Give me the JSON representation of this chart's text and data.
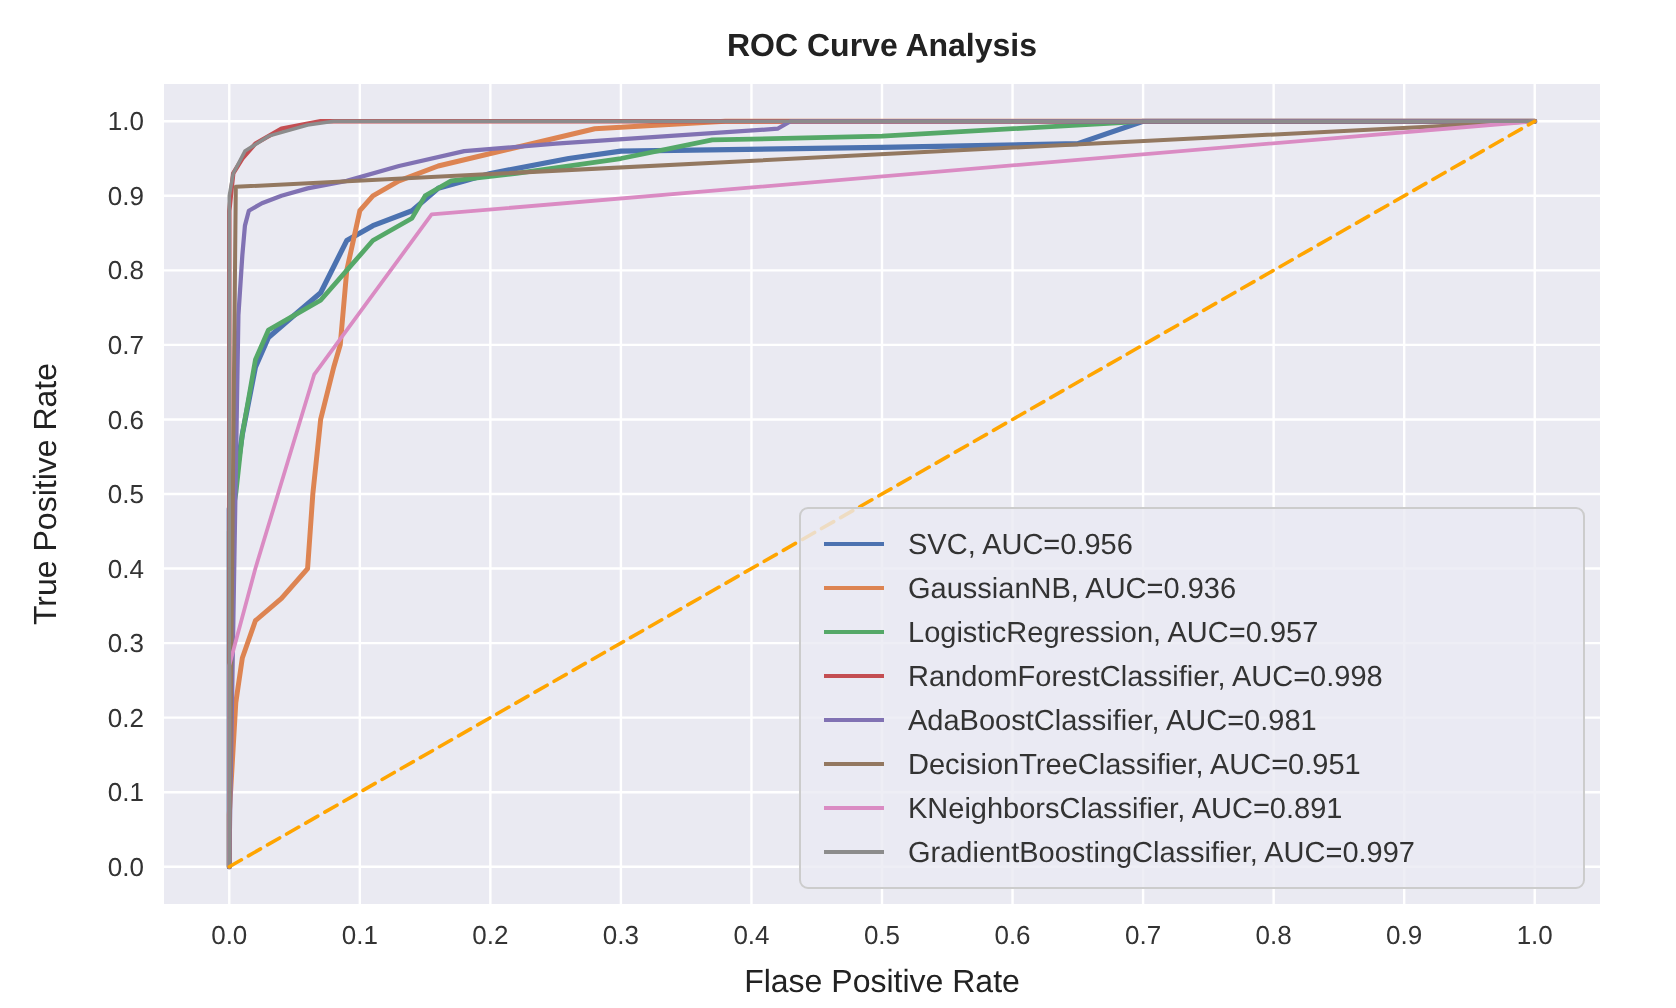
{
  "chart_data": {
    "type": "line",
    "title": "ROC Curve Analysis",
    "xlabel": "Flase Positive Rate",
    "ylabel": "True Positive Rate",
    "xlim": [
      -0.05,
      1.05
    ],
    "ylim": [
      -0.05,
      1.05
    ],
    "xticks": [
      {
        "value": 0,
        "label": "0.0"
      },
      0.1,
      0.2,
      0.3,
      0.4,
      0.5,
      0.6,
      0.7,
      0.8,
      0.9,
      {
        "value": 1,
        "label": "1.0"
      }
    ],
    "yticks": [
      {
        "value": 0,
        "label": "0.0"
      },
      0.1,
      0.2,
      0.3,
      0.4,
      0.5,
      0.6,
      0.7,
      0.8,
      0.9,
      {
        "value": 1,
        "label": "1.0"
      }
    ],
    "grid": true,
    "legend": "bottom right",
    "series": [
      {
        "name": "SVC, AUC=0.956",
        "color": "#4c72b0",
        "x": [
          0,
          0,
          0.005,
          0.01,
          0.02,
          0.03,
          0.05,
          0.07,
          0.09,
          0.11,
          0.14,
          0.16,
          0.18,
          0.2,
          0.26,
          0.3,
          0.5,
          0.65,
          0.7,
          1
        ],
        "values": [
          0,
          0.48,
          0.52,
          0.58,
          0.67,
          0.71,
          0.74,
          0.77,
          0.84,
          0.86,
          0.88,
          0.91,
          0.92,
          0.93,
          0.95,
          0.96,
          0.965,
          0.97,
          1,
          1
        ]
      },
      {
        "name": "GaussianNB, AUC=0.936",
        "color": "#dd8452",
        "x": [
          0,
          0,
          0.005,
          0.01,
          0.02,
          0.04,
          0.06,
          0.064,
          0.07,
          0.08,
          0.085,
          0.09,
          0.1,
          0.11,
          0.13,
          0.16,
          0.28,
          0.38,
          1
        ],
        "values": [
          0,
          0.07,
          0.22,
          0.28,
          0.33,
          0.36,
          0.4,
          0.5,
          0.6,
          0.67,
          0.7,
          0.8,
          0.88,
          0.9,
          0.92,
          0.94,
          0.99,
          1,
          1
        ]
      },
      {
        "name": "LogisticRegression, AUC=0.957",
        "color": "#55a868",
        "x": [
          0,
          0,
          0.005,
          0.01,
          0.02,
          0.03,
          0.05,
          0.07,
          0.09,
          0.11,
          0.14,
          0.15,
          0.17,
          0.22,
          0.3,
          0.37,
          0.5,
          0.7,
          1
        ],
        "values": [
          0,
          0.45,
          0.5,
          0.58,
          0.68,
          0.72,
          0.74,
          0.76,
          0.8,
          0.84,
          0.87,
          0.9,
          0.92,
          0.93,
          0.95,
          0.975,
          0.98,
          1,
          1
        ]
      },
      {
        "name": "RandomForestClassifier, AUC=0.998",
        "color": "#c44e52",
        "x": [
          0,
          0,
          0.003,
          0.01,
          0.02,
          0.04,
          0.07,
          1
        ],
        "values": [
          0,
          0.88,
          0.93,
          0.95,
          0.97,
          0.99,
          1,
          1
        ]
      },
      {
        "name": "AdaBoostClassifier, AUC=0.981",
        "color": "#8172b3",
        "x": [
          0,
          0.007,
          0.01,
          0.012,
          0.015,
          0.025,
          0.04,
          0.06,
          0.09,
          0.13,
          0.18,
          0.25,
          0.42,
          0.43,
          1
        ],
        "values": [
          0,
          0.74,
          0.82,
          0.86,
          0.88,
          0.89,
          0.9,
          0.91,
          0.92,
          0.94,
          0.96,
          0.97,
          0.99,
          1,
          1
        ]
      },
      {
        "name": "DecisionTreeClassifier, AUC=0.951",
        "color": "#937860",
        "x": [
          0,
          0.005,
          1
        ],
        "values": [
          0,
          0.912,
          1
        ]
      },
      {
        "name": "KNeighborsClassifier, AUC=0.891",
        "color": "#da8bc3",
        "x": [
          0,
          0,
          0.02,
          0.065,
          0.155,
          1
        ],
        "values": [
          0,
          0.27,
          0.4,
          0.66,
          0.875,
          1
        ]
      },
      {
        "name": "GradientBoostingClassifier, AUC=0.997",
        "color": "#8c8c8c",
        "x": [
          0,
          0,
          0.003,
          0.012,
          0.03,
          0.06,
          0.08,
          1
        ],
        "values": [
          0,
          0.9,
          0.93,
          0.96,
          0.98,
          0.995,
          1,
          1
        ]
      },
      {
        "color": "#ffa500",
        "line_style": "dashed",
        "x": [
          0,
          1
        ],
        "values": [
          0,
          1
        ]
      }
    ]
  }
}
